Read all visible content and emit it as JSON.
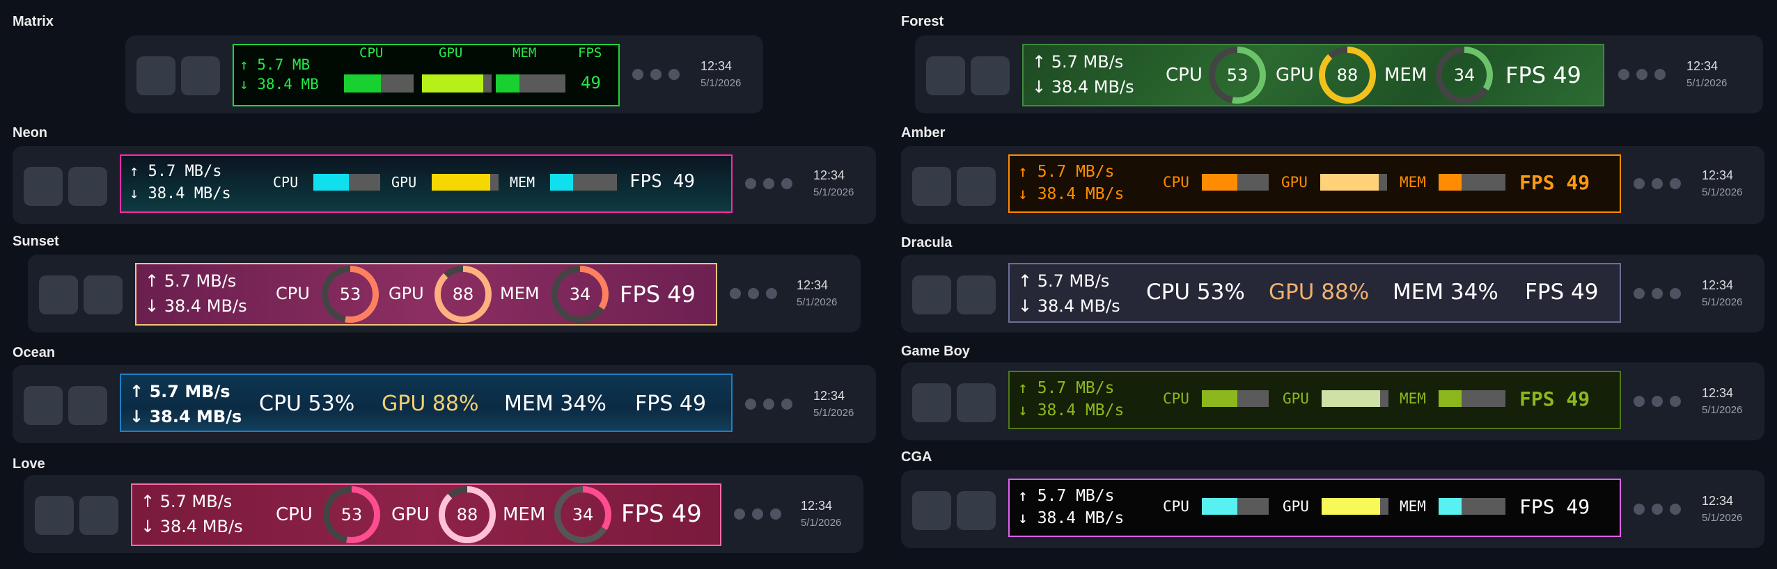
{
  "themes": {
    "matrix": {
      "name": "Matrix"
    },
    "forest": {
      "name": "Forest"
    },
    "neon": {
      "name": "Neon"
    },
    "amber": {
      "name": "Amber"
    },
    "sunset": {
      "name": "Sunset"
    },
    "dracula": {
      "name": "Dracula"
    },
    "ocean": {
      "name": "Ocean"
    },
    "gameboy": {
      "name": "Game Boy"
    },
    "love": {
      "name": "Love"
    },
    "cga": {
      "name": "CGA"
    }
  },
  "clock": {
    "time": "12:34",
    "date": "5/1/2026"
  },
  "net": {
    "up_mb": "↑ 5.7 MB",
    "down_mb": "↓ 38.4 MB",
    "up": "↑ 5.7 MB/s",
    "down": "↓ 38.4 MB/s"
  },
  "labels": {
    "cpu": "CPU",
    "gpu": "GPU",
    "mem": "MEM",
    "fps": "FPS"
  },
  "values": {
    "cpu": "53",
    "gpu": "88",
    "mem": "34",
    "fps": "49"
  },
  "fractions": {
    "cpu": 0.53,
    "gpu": 0.88,
    "mem": 0.34
  },
  "texts": {
    "fps": "FPS 49",
    "cpu": "CPU 53%",
    "gpu": "GPU 88%",
    "mem": "MEM 34%"
  },
  "colors": {
    "matrix": "#20e040",
    "forest": "#6cc46a",
    "forest_gpu": "#f2c21c",
    "neon_accent": "#ff2aa8",
    "neon_bar": "#10e0ee",
    "neon_gpu": "#f5d800",
    "amber": "#ff8c00",
    "amber_gpu": "#ffd27a",
    "sunset_border": "#f5c57a",
    "sunset_ring": "#ff8060",
    "sunset_ring2": "#ffb080",
    "dracula_gpu": "#f0b070",
    "ocean_gpu": "#f5d070",
    "ocean_border": "#1e7ec8",
    "gameboy": "#8cb81e",
    "gameboy_gpu": "#cde2a4",
    "love_border": "#ff6aa8",
    "love_ring": "#ff4d90",
    "love_ring2": "#ffc0d8",
    "cga_border": "#e060f0",
    "cga_bar": "#58f0f0",
    "cga_gpu": "#f8f858"
  }
}
